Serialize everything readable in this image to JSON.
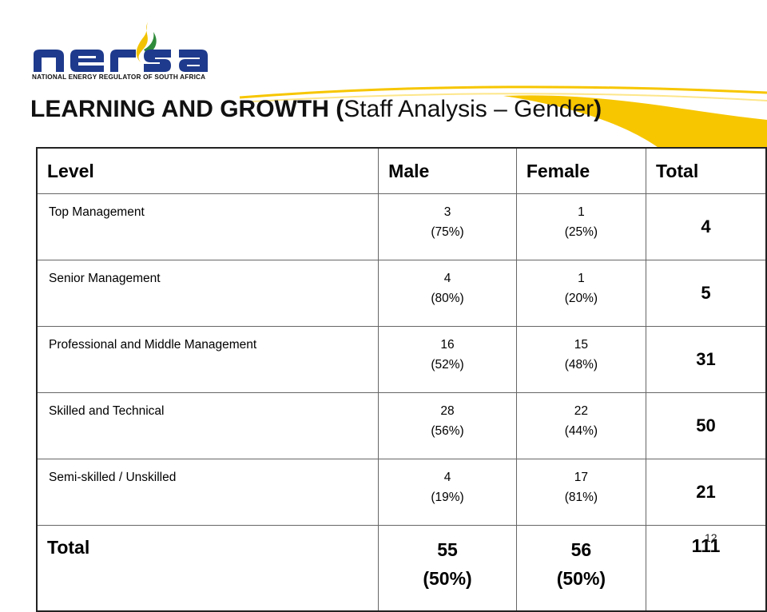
{
  "logo": {
    "wordmark": "nersa",
    "tagline": "NATIONAL ENERGY REGULATOR OF SOUTH AFRICA",
    "primary_color": "#1e3a8c",
    "accent_color": "#f2c200",
    "green_color": "#2e8b3a"
  },
  "title": {
    "bold_part": "LEARNING AND GROWTH (",
    "regular_part": "Staff Analysis – Gender",
    "closing": ")"
  },
  "table": {
    "headers": [
      "Level",
      "Male",
      "Female",
      "Total"
    ],
    "rows": [
      {
        "level": "Top Management",
        "male": "3",
        "male_pct": "(75%)",
        "female": "1",
        "female_pct": "(25%)",
        "total": "4"
      },
      {
        "level": "Senior Management",
        "male": "4",
        "male_pct": "(80%)",
        "female": "1",
        "female_pct": "(20%)",
        "total": "5"
      },
      {
        "level": "Professional and Middle Management",
        "male": "16",
        "male_pct": "(52%)",
        "female": "15",
        "female_pct": "(48%)",
        "total": "31"
      },
      {
        "level": "Skilled and Technical",
        "male": "28",
        "male_pct": "(56%)",
        "female": "22",
        "female_pct": "(44%)",
        "total": "50"
      },
      {
        "level": "Semi-skilled / Unskilled",
        "male": "4",
        "male_pct": "(19%)",
        "female": "17",
        "female_pct": "(81%)",
        "total": "21"
      }
    ],
    "total_row": {
      "level": "Total",
      "male": "55",
      "male_pct": "(50%)",
      "female": "56",
      "female_pct": "(50%)",
      "total": "111"
    }
  },
  "page_number": "12",
  "colors": {
    "swoosh_yellow": "#f7c600",
    "swoosh_light": "#fde68a"
  }
}
